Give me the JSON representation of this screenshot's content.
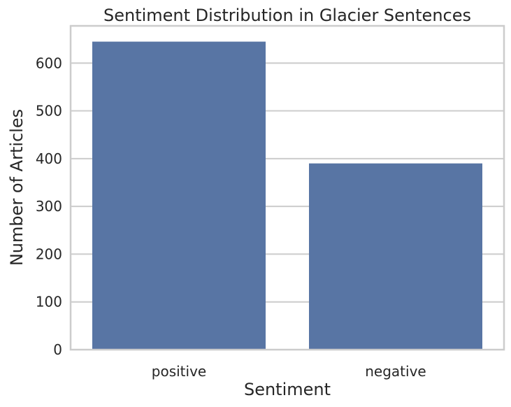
{
  "chart_data": {
    "type": "bar",
    "title": "Sentiment Distribution in Glacier Sentences",
    "xlabel": "Sentiment",
    "ylabel": "Number of Articles",
    "categories": [
      "positive",
      "negative"
    ],
    "values": [
      645,
      390
    ],
    "ylim": [
      0,
      678
    ],
    "yticks": [
      0,
      100,
      200,
      300,
      400,
      500,
      600
    ],
    "grid": true,
    "legend": "none",
    "colors": {
      "bar": "#5875a4",
      "grid": "#cccccc",
      "spine": "#cccccc",
      "text": "#262626",
      "background": "#ffffff"
    }
  }
}
